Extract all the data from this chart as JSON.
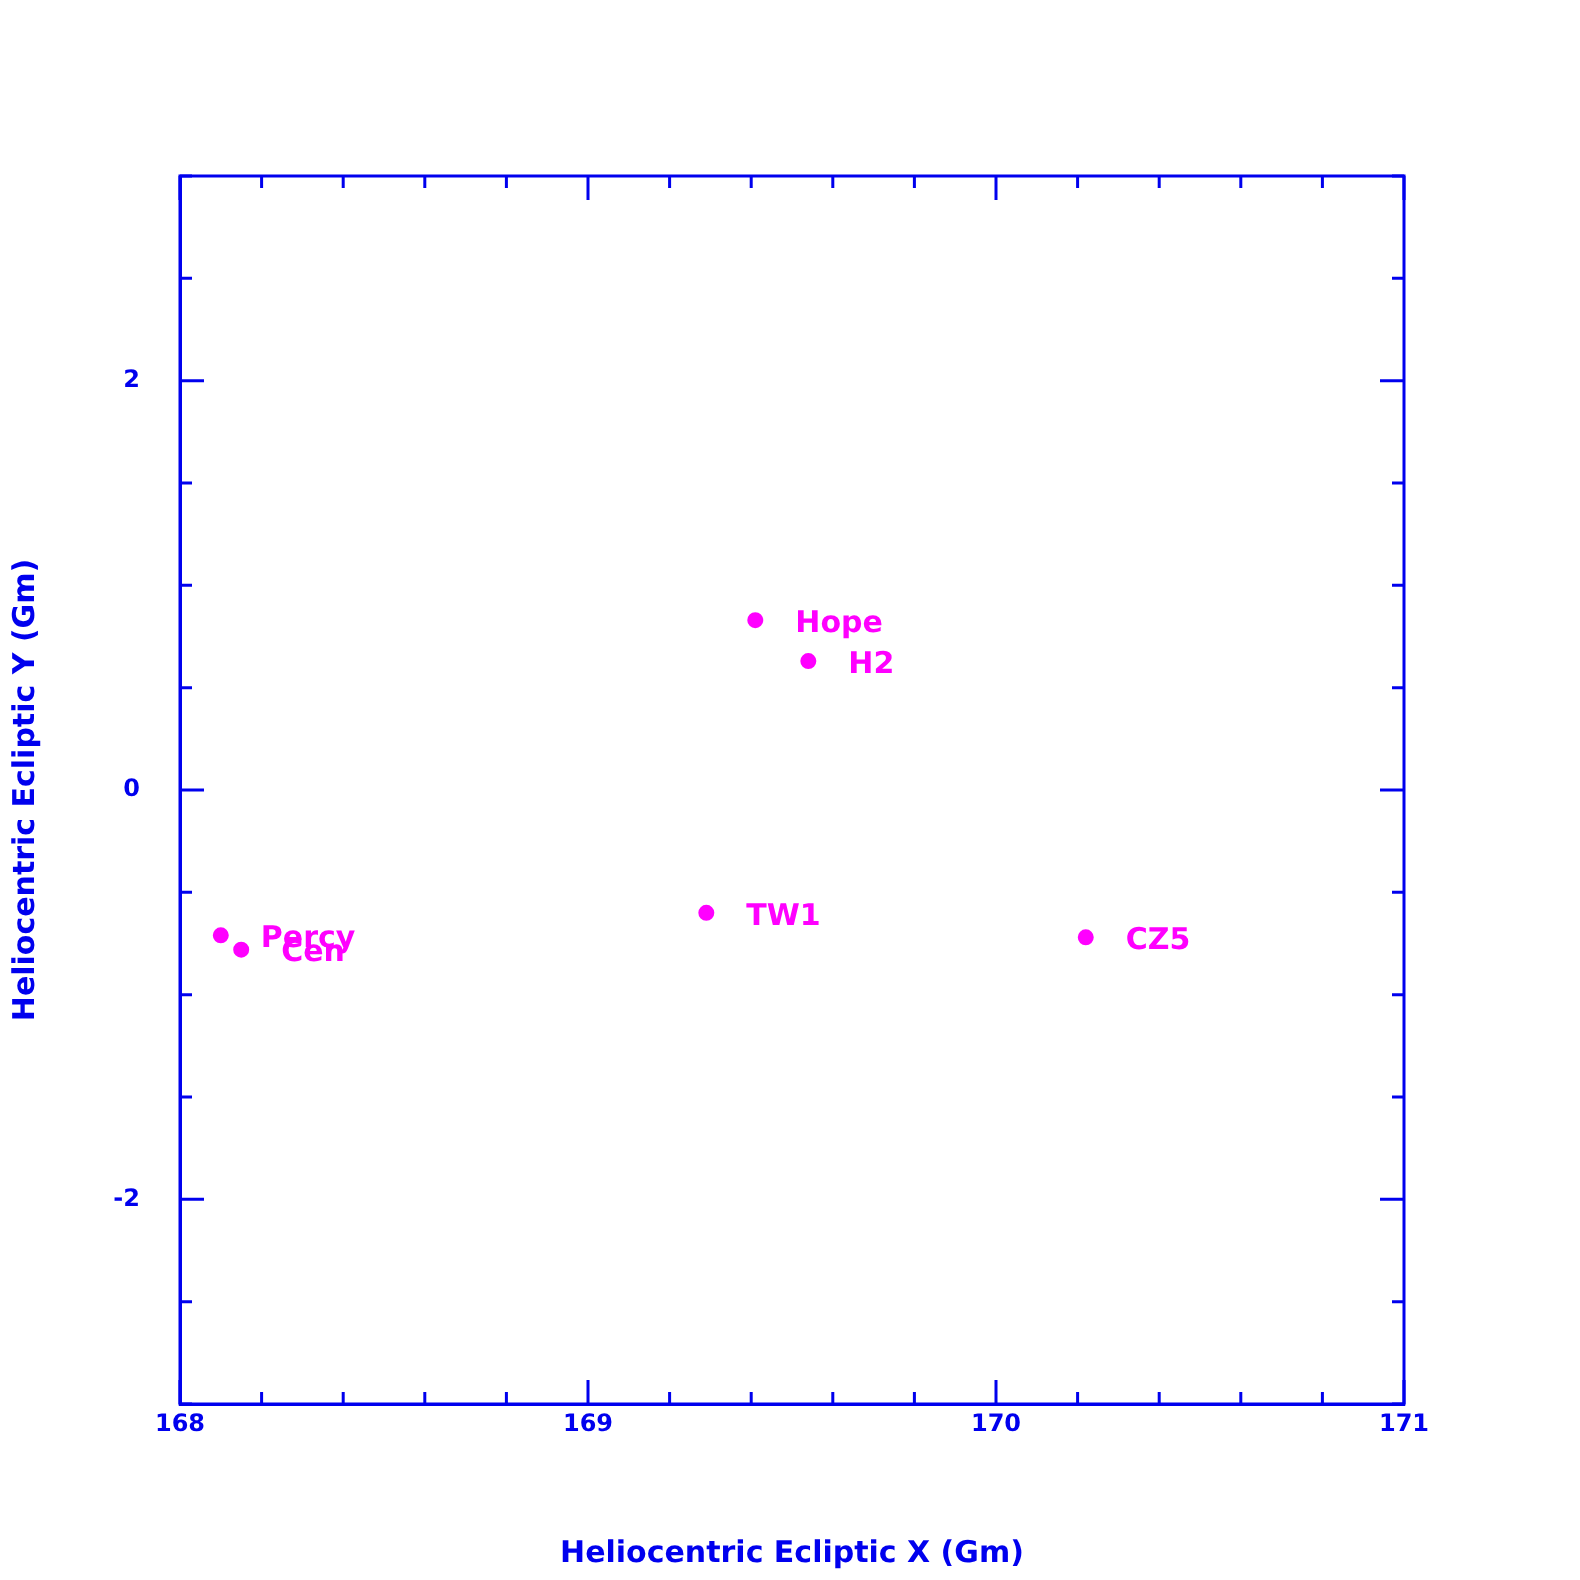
{
  "chart_data": {
    "type": "scatter",
    "xlabel": "Heliocentric Ecliptic X (Gm)",
    "ylabel": "Heliocentric Ecliptic Y (Gm)",
    "x": [
      169.41,
      169.54,
      169.29,
      168.1,
      168.15,
      170.22
    ],
    "series": [
      {
        "color": "#ff00ff",
        "values": [
          0.83,
          0.63,
          -0.6,
          -0.71,
          -0.78,
          -0.72
        ]
      }
    ],
    "xlim": [
      168,
      171
    ],
    "ylim": [
      -3,
      3
    ],
    "xticks": [
      168,
      {
        "value": 168.2,
        "label": null
      },
      {
        "value": 168.4,
        "label": null
      },
      {
        "value": 168.6,
        "label": null
      },
      {
        "value": 168.8,
        "label": null
      },
      169,
      {
        "value": 169.2,
        "label": null
      },
      {
        "value": 169.4,
        "label": null
      },
      {
        "value": 169.6,
        "label": null
      },
      {
        "value": 169.8,
        "label": null
      },
      170,
      {
        "value": 170.2,
        "label": null
      },
      {
        "value": 170.4,
        "label": null
      },
      {
        "value": 170.6,
        "label": null
      },
      {
        "value": 170.8,
        "label": null
      },
      171
    ],
    "yticks": [
      {
        "value": -3,
        "label": null
      },
      {
        "value": -2.5,
        "label": null
      },
      -2,
      {
        "value": -1.5,
        "label": null
      },
      {
        "value": -1,
        "label": null
      },
      {
        "value": -0.5,
        "label": null
      },
      0,
      {
        "value": 0.5,
        "label": null
      },
      {
        "value": 1,
        "label": null
      },
      {
        "value": 1.5,
        "label": null
      },
      2,
      {
        "value": 2.5,
        "label": null
      },
      {
        "value": 3,
        "label": null
      }
    ],
    "marker": "circle",
    "grid": false,
    "legend": false,
    "annotations": [
      {
        "text": "Hope",
        "x": 169.41,
        "y": 0.83
      },
      {
        "text": "H2",
        "x": 169.54,
        "y": 0.63
      },
      {
        "text": "TW1",
        "x": 169.29,
        "y": -0.6
      },
      {
        "text": "Percy",
        "x": 168.1,
        "y": -0.71
      },
      {
        "text": "Cen",
        "x": 168.15,
        "y": -0.78
      },
      {
        "text": "CZ5",
        "x": 170.22,
        "y": -0.72
      }
    ]
  }
}
